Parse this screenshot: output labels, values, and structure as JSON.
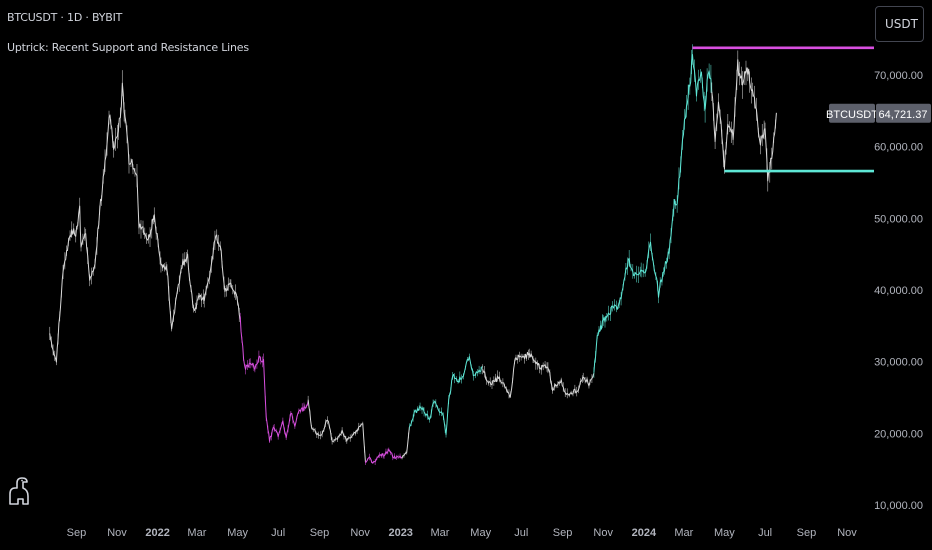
{
  "header": {
    "symbol_title": "BTCUSDT · 1D · BYBIT",
    "indicator_title": "Uptrick: Recent Support and Resistance Lines",
    "currency_button": "USDT"
  },
  "price_label": {
    "symbol": "BTCUSDT",
    "value": "64,721.37"
  },
  "colors": {
    "background": "#000000",
    "neutral_candle": "#d9d9d9",
    "support_uptrend": "#5ee7d6",
    "resistance_downtrend": "#d94fe0",
    "axis_text": "#b2b5be",
    "label_bg": "#5d606b"
  },
  "icons": {
    "logo": "tradingview-dino-icon"
  },
  "chart_data": {
    "type": "line",
    "title": "",
    "xlabel": "",
    "ylabel": "",
    "x_domain": [
      "2021-07-01",
      "2024-11-30"
    ],
    "ylim": [
      10000,
      76000
    ],
    "y_ticks": [
      10000,
      20000,
      30000,
      40000,
      50000,
      60000,
      70000
    ],
    "y_tick_labels": [
      "10,000.00",
      "20,000.00",
      "30,000.00",
      "40,000.00",
      "50,000.00",
      "60,000.00",
      "70,000.00"
    ],
    "x_ticks": [
      {
        "date": "2021-09-01",
        "label": "Sep",
        "bold": false
      },
      {
        "date": "2021-11-01",
        "label": "Nov",
        "bold": false
      },
      {
        "date": "2022-01-01",
        "label": "2022",
        "bold": true
      },
      {
        "date": "2022-03-01",
        "label": "Mar",
        "bold": false
      },
      {
        "date": "2022-05-01",
        "label": "May",
        "bold": false
      },
      {
        "date": "2022-07-01",
        "label": "Jul",
        "bold": false
      },
      {
        "date": "2022-09-01",
        "label": "Sep",
        "bold": false
      },
      {
        "date": "2022-11-01",
        "label": "Nov",
        "bold": false
      },
      {
        "date": "2023-01-01",
        "label": "2023",
        "bold": true
      },
      {
        "date": "2023-03-01",
        "label": "Mar",
        "bold": false
      },
      {
        "date": "2023-05-01",
        "label": "May",
        "bold": false
      },
      {
        "date": "2023-07-01",
        "label": "Jul",
        "bold": false
      },
      {
        "date": "2023-09-01",
        "label": "Sep",
        "bold": false
      },
      {
        "date": "2023-11-01",
        "label": "Nov",
        "bold": false
      },
      {
        "date": "2024-01-01",
        "label": "2024",
        "bold": true
      },
      {
        "date": "2024-03-01",
        "label": "Mar",
        "bold": false
      },
      {
        "date": "2024-05-01",
        "label": "May",
        "bold": false
      },
      {
        "date": "2024-07-01",
        "label": "Jul",
        "bold": false
      },
      {
        "date": "2024-09-01",
        "label": "Sep",
        "bold": false
      },
      {
        "date": "2024-11-01",
        "label": "Nov",
        "bold": false
      }
    ],
    "series": [
      {
        "color_key": "neutral",
        "points": [
          [
            "2021-07-23",
            33500
          ],
          [
            "2021-07-28",
            31500
          ],
          [
            "2021-08-02",
            30200
          ],
          [
            "2021-08-07",
            36500
          ],
          [
            "2021-08-12",
            43000
          ],
          [
            "2021-08-20",
            46500
          ],
          [
            "2021-08-25",
            48500
          ],
          [
            "2021-08-31",
            47500
          ],
          [
            "2021-09-06",
            51500
          ],
          [
            "2021-09-08",
            46000
          ],
          [
            "2021-09-15",
            48000
          ],
          [
            "2021-09-21",
            41500
          ],
          [
            "2021-09-29",
            43500
          ],
          [
            "2021-10-06",
            51000
          ],
          [
            "2021-10-14",
            57500
          ],
          [
            "2021-10-20",
            64500
          ],
          [
            "2021-10-27",
            60000
          ],
          [
            "2021-11-03",
            61500
          ],
          [
            "2021-11-09",
            68000
          ],
          [
            "2021-11-13",
            64500
          ],
          [
            "2021-11-19",
            58000
          ],
          [
            "2021-11-25",
            57500
          ],
          [
            "2021-12-01",
            56500
          ],
          [
            "2021-12-04",
            49000
          ],
          [
            "2021-12-10",
            48500
          ],
          [
            "2021-12-18",
            47000
          ],
          [
            "2021-12-27",
            50500
          ],
          [
            "2022-01-06",
            43500
          ],
          [
            "2022-01-15",
            43000
          ],
          [
            "2022-01-22",
            35000
          ],
          [
            "2022-01-28",
            38000
          ],
          [
            "2022-02-08",
            44000
          ],
          [
            "2022-02-15",
            44500
          ],
          [
            "2022-02-24",
            37000
          ],
          [
            "2022-03-05",
            39000
          ],
          [
            "2022-03-12",
            39000
          ],
          [
            "2022-03-20",
            42000
          ],
          [
            "2022-03-28",
            47500
          ],
          [
            "2022-04-05",
            46500
          ],
          [
            "2022-04-12",
            40000
          ],
          [
            "2022-04-21",
            41000
          ],
          [
            "2022-04-28",
            39500
          ],
          [
            "2022-05-05",
            36000
          ]
        ]
      },
      {
        "color_key": "resistance",
        "points": [
          [
            "2022-05-05",
            36000
          ],
          [
            "2022-05-10",
            30500
          ],
          [
            "2022-05-13",
            29000
          ],
          [
            "2022-05-20",
            30000
          ],
          [
            "2022-05-27",
            29000
          ],
          [
            "2022-06-02",
            30500
          ],
          [
            "2022-06-09",
            30000
          ],
          [
            "2022-06-13",
            22500
          ],
          [
            "2022-06-18",
            19000
          ],
          [
            "2022-06-25",
            21000
          ],
          [
            "2022-07-01",
            19500
          ],
          [
            "2022-07-08",
            21500
          ],
          [
            "2022-07-13",
            19500
          ],
          [
            "2022-07-20",
            23000
          ],
          [
            "2022-07-26",
            21000
          ],
          [
            "2022-08-01",
            23000
          ],
          [
            "2022-08-10",
            23500
          ],
          [
            "2022-08-15",
            24500
          ]
        ]
      },
      {
        "color_key": "neutral",
        "points": [
          [
            "2022-08-15",
            24500
          ],
          [
            "2022-08-20",
            21000
          ],
          [
            "2022-08-28",
            20000
          ],
          [
            "2022-09-05",
            19800
          ],
          [
            "2022-09-10",
            21500
          ],
          [
            "2022-09-13",
            22000
          ],
          [
            "2022-09-20",
            19000
          ],
          [
            "2022-09-28",
            19300
          ],
          [
            "2022-10-05",
            20300
          ],
          [
            "2022-10-12",
            19000
          ],
          [
            "2022-10-25",
            20000
          ],
          [
            "2022-10-30",
            20700
          ],
          [
            "2022-11-05",
            21300
          ],
          [
            "2022-11-09",
            16000
          ]
        ]
      },
      {
        "color_key": "resistance",
        "points": [
          [
            "2022-11-09",
            16000
          ],
          [
            "2022-11-15",
            16800
          ],
          [
            "2022-11-21",
            15800
          ],
          [
            "2022-11-30",
            17100
          ],
          [
            "2022-12-07",
            16900
          ],
          [
            "2022-12-14",
            17800
          ],
          [
            "2022-12-20",
            16800
          ],
          [
            "2022-12-28",
            16600
          ],
          [
            "2023-01-03",
            16700
          ]
        ]
      },
      {
        "color_key": "neutral",
        "points": [
          [
            "2023-01-03",
            16700
          ],
          [
            "2023-01-10",
            17300
          ],
          [
            "2023-01-14",
            20900
          ]
        ]
      },
      {
        "color_key": "support",
        "points": [
          [
            "2023-01-14",
            20900
          ],
          [
            "2023-01-21",
            22800
          ],
          [
            "2023-01-30",
            23500
          ],
          [
            "2023-02-05",
            23200
          ],
          [
            "2023-02-13",
            21800
          ],
          [
            "2023-02-20",
            24500
          ],
          [
            "2023-02-28",
            23300
          ],
          [
            "2023-03-06",
            22300
          ],
          [
            "2023-03-10",
            19800
          ],
          [
            "2023-03-14",
            24500
          ],
          [
            "2023-03-20",
            28000
          ],
          [
            "2023-03-28",
            27200
          ],
          [
            "2023-04-05",
            28200
          ],
          [
            "2023-04-11",
            30000
          ],
          [
            "2023-04-14",
            30400
          ],
          [
            "2023-04-20",
            28200
          ],
          [
            "2023-04-26",
            28500
          ],
          [
            "2023-05-04",
            29300
          ]
        ]
      },
      {
        "color_key": "neutral",
        "points": [
          [
            "2023-05-04",
            29300
          ],
          [
            "2023-05-10",
            27500
          ],
          [
            "2023-05-18",
            26900
          ],
          [
            "2023-05-29",
            27900
          ],
          [
            "2023-06-10",
            25800
          ],
          [
            "2023-06-15",
            25100
          ],
          [
            "2023-06-21",
            29900
          ],
          [
            "2023-06-23",
            30700
          ],
          [
            "2023-07-06",
            30500
          ],
          [
            "2023-07-13",
            31300
          ],
          [
            "2023-07-20",
            29900
          ],
          [
            "2023-07-31",
            29200
          ],
          [
            "2023-08-10",
            29400
          ],
          [
            "2023-08-17",
            26200
          ],
          [
            "2023-08-30",
            27200
          ],
          [
            "2023-09-05",
            25800
          ],
          [
            "2023-09-11",
            25200
          ],
          [
            "2023-09-25",
            26300
          ],
          [
            "2023-10-02",
            27900
          ],
          [
            "2023-10-12",
            26800
          ],
          [
            "2023-10-18",
            28400
          ]
        ]
      },
      {
        "color_key": "support",
        "points": [
          [
            "2023-10-18",
            28400
          ],
          [
            "2023-10-23",
            33500
          ],
          [
            "2023-11-01",
            35500
          ],
          [
            "2023-11-09",
            36700
          ],
          [
            "2023-11-15",
            37500
          ],
          [
            "2023-11-25",
            37700
          ],
          [
            "2023-12-05",
            43000
          ],
          [
            "2023-12-10",
            44000
          ],
          [
            "2023-12-18",
            41800
          ],
          [
            "2023-12-28",
            43000
          ],
          [
            "2024-01-03",
            42500
          ],
          [
            "2024-01-11",
            46500
          ],
          [
            "2024-01-23",
            39500
          ],
          [
            "2024-02-01",
            43200
          ],
          [
            "2024-02-08",
            45500
          ],
          [
            "2024-02-15",
            52000
          ],
          [
            "2024-02-20",
            51800
          ],
          [
            "2024-02-28",
            61000
          ],
          [
            "2024-03-05",
            66000
          ],
          [
            "2024-03-10",
            68500
          ],
          [
            "2024-03-14",
            72500
          ],
          [
            "2024-03-20",
            67000
          ],
          [
            "2024-03-26",
            70500
          ],
          [
            "2024-04-02",
            66000
          ],
          [
            "2024-04-08",
            71500
          ],
          [
            "2024-04-12",
            67500
          ]
        ]
      },
      {
        "color_key": "neutral",
        "points": [
          [
            "2024-04-12",
            67500
          ],
          [
            "2024-04-17",
            61300
          ],
          [
            "2024-04-22",
            66500
          ],
          [
            "2024-05-01",
            57500
          ],
          [
            "2024-05-06",
            63000
          ],
          [
            "2024-05-14",
            61500
          ],
          [
            "2024-05-21",
            71200
          ],
          [
            "2024-05-28",
            68500
          ],
          [
            "2024-06-05",
            71000
          ],
          [
            "2024-06-12",
            67800
          ],
          [
            "2024-06-18",
            65000
          ],
          [
            "2024-06-24",
            60500
          ],
          [
            "2024-07-01",
            63000
          ],
          [
            "2024-07-05",
            55500
          ],
          [
            "2024-07-08",
            56800
          ],
          [
            "2024-07-14",
            60500
          ],
          [
            "2024-07-18",
            64721
          ]
        ]
      }
    ],
    "resistance_line": {
      "value": 73800,
      "from": "2024-03-14",
      "to": "2024-11-30"
    },
    "support_line": {
      "value": 56600,
      "from": "2024-05-01",
      "to": "2024-11-30"
    },
    "last_price": 64721.37
  }
}
